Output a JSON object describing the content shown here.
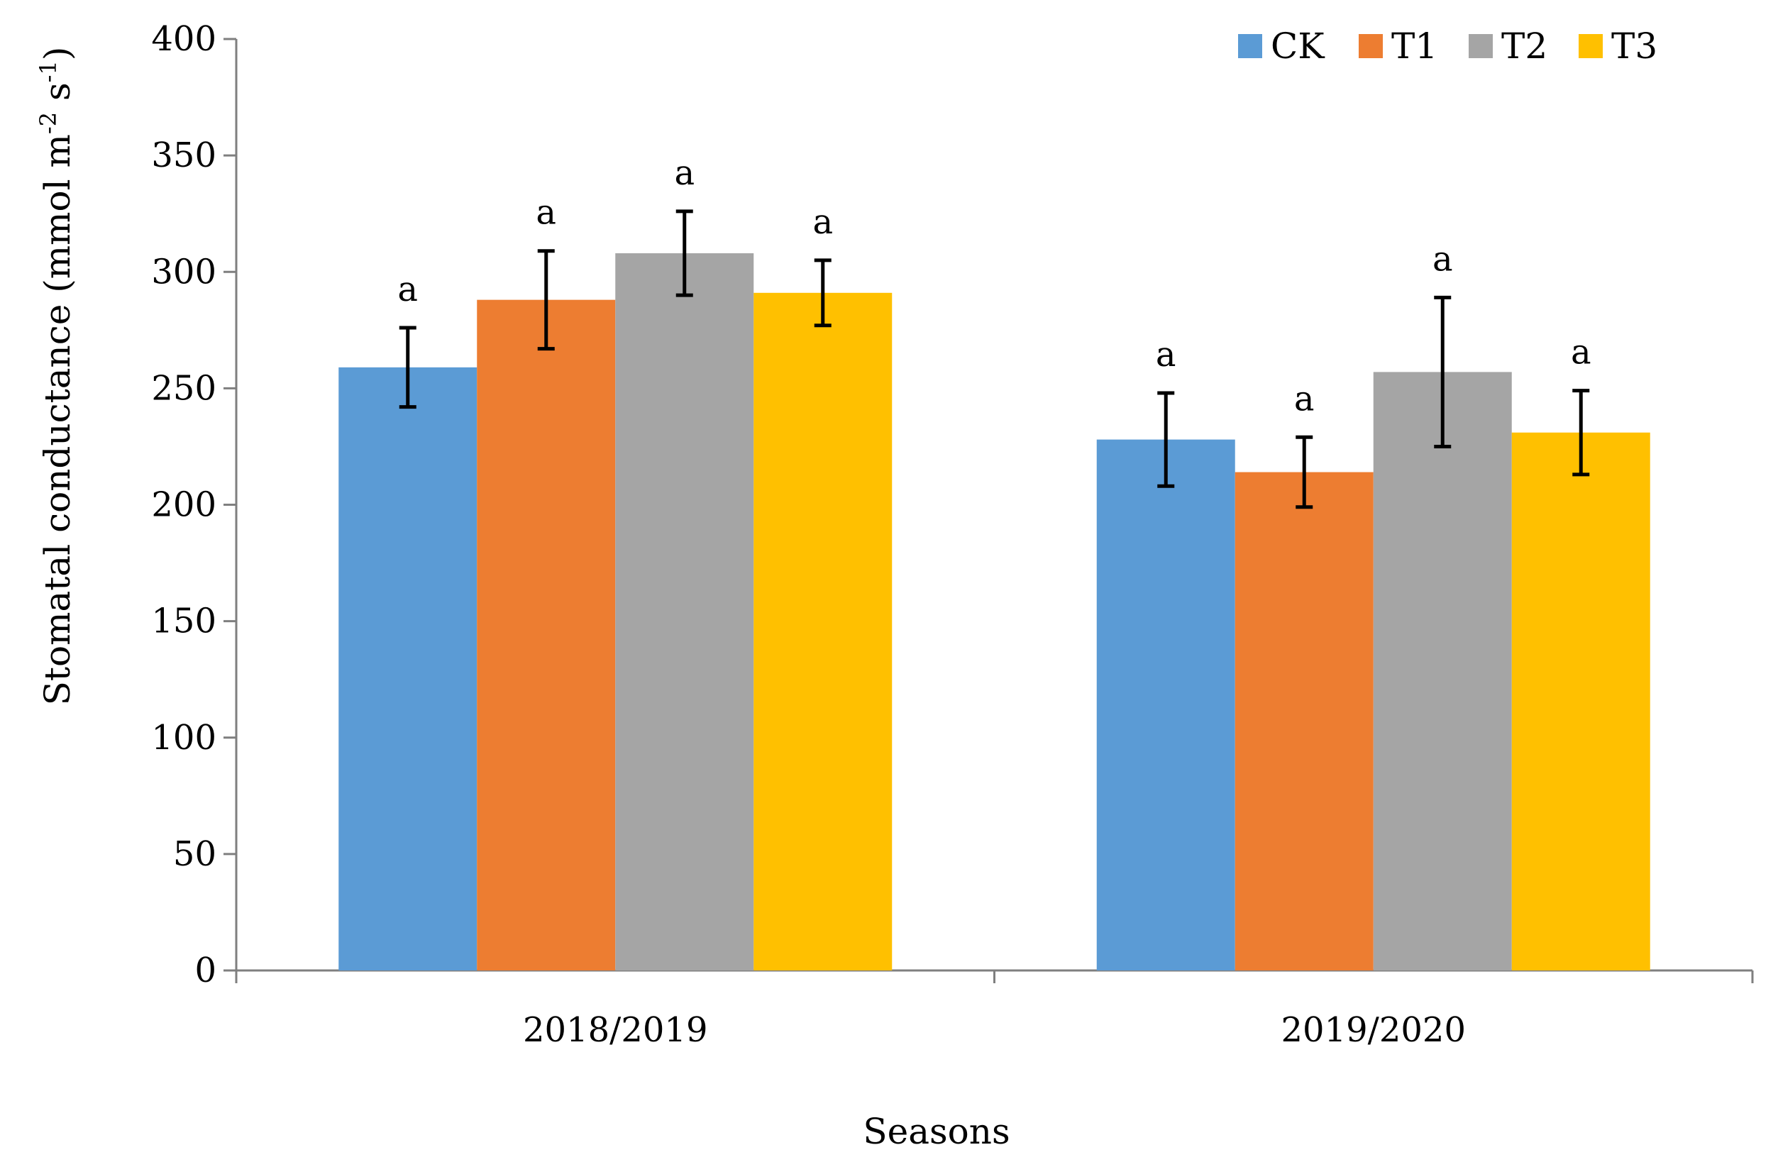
{
  "chart_data": {
    "type": "bar",
    "categories": [
      "2018/2019",
      "2019/2020"
    ],
    "series": [
      {
        "name": "CK",
        "color": "#5b9bd5",
        "values": [
          259,
          228
        ],
        "errors": [
          17,
          20
        ],
        "labels": [
          "a",
          "a"
        ]
      },
      {
        "name": "T1",
        "color": "#ed7d31",
        "values": [
          288,
          214
        ],
        "errors": [
          21,
          15
        ],
        "labels": [
          "a",
          "a"
        ]
      },
      {
        "name": "T2",
        "color": "#a5a5a5",
        "values": [
          308,
          257
        ],
        "errors": [
          18,
          32
        ],
        "labels": [
          "a",
          "a"
        ]
      },
      {
        "name": "T3",
        "color": "#ffc000",
        "values": [
          291,
          231
        ],
        "errors": [
          14,
          18
        ],
        "labels": [
          "a",
          "a"
        ]
      }
    ],
    "xlabel": "Seasons",
    "ylabel": "Stomatal conductance (mmol m",
    "ylabel_sup1": "-2",
    "ylabel_mid": " s",
    "ylabel_sup2": "-1",
    "ylabel_end": ")",
    "ylim": [
      0,
      400
    ],
    "yticks": [
      "0",
      "50",
      "100",
      "150",
      "200",
      "250",
      "300",
      "350",
      "400"
    ],
    "grid": false,
    "legend_position": "top-right"
  }
}
